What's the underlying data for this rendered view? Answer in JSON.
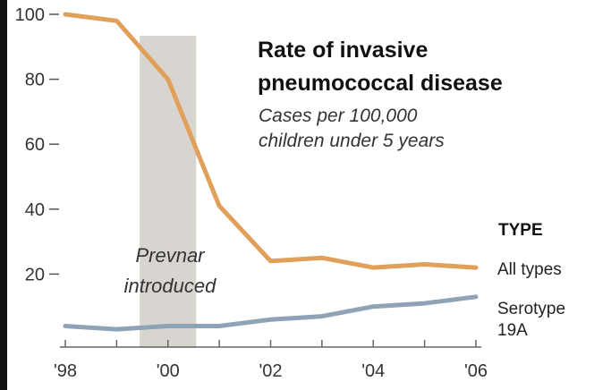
{
  "chart_data": {
    "type": "line",
    "title": [
      "Rate of invasive",
      "pneumococcal disease"
    ],
    "subtitle": [
      "Cases per 100,000",
      "children under 5 years"
    ],
    "x": [
      1998,
      1999,
      2000,
      2001,
      2002,
      2003,
      2004,
      2005,
      2006
    ],
    "xticks": [
      1998,
      1999,
      2000,
      2001,
      2002,
      2003,
      2004,
      2005,
      2006
    ],
    "xtick_labels": [
      "'98",
      "",
      "'00",
      "",
      "'02",
      "",
      "'04",
      "",
      "'06"
    ],
    "xlim": [
      1998,
      2006
    ],
    "yticks": [
      20,
      40,
      60,
      80,
      100
    ],
    "ytick_labels": [
      "20",
      "40",
      "60",
      "80",
      "100"
    ],
    "ylim": [
      0,
      100
    ],
    "series": [
      {
        "name": "All types",
        "color": "#e0a05a",
        "values": [
          100,
          98,
          80,
          41,
          24,
          25,
          22,
          23,
          22
        ]
      },
      {
        "name": "Serotype 19A",
        "color": "#8ea3b5",
        "values": [
          4,
          3,
          4,
          4,
          6,
          7,
          10,
          11,
          13
        ]
      }
    ],
    "annotation": {
      "label": [
        "Prevnar",
        "introduced"
      ],
      "x_range": [
        1999.45,
        2000.55
      ],
      "color": "#d8d5d0"
    },
    "legend_title": "TYPE",
    "grid": false
  }
}
